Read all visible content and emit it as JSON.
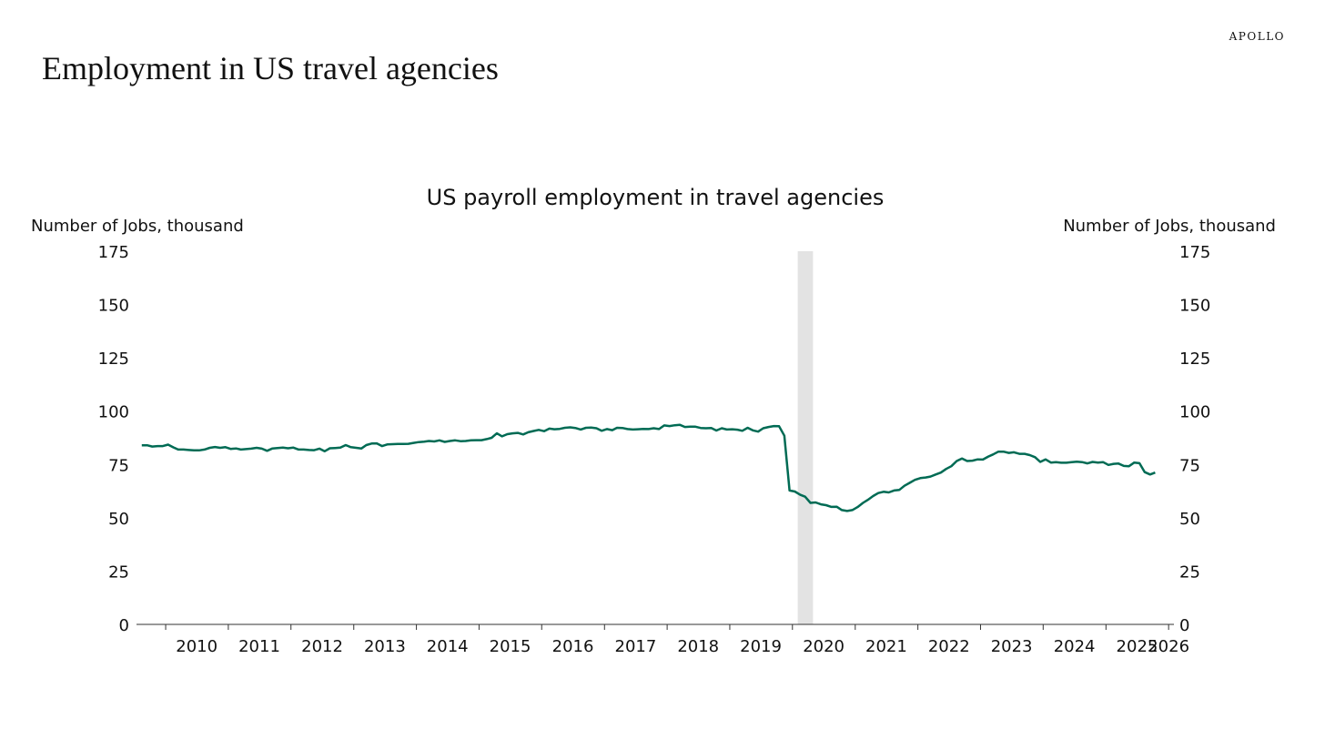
{
  "brand": "APOLLO",
  "page_title": "Employment in US travel agencies",
  "chart_data": {
    "type": "line",
    "title": "US payroll employment in travel agencies",
    "ylabel_left": "Number of Jobs, thousand",
    "ylabel_right": "Number of Jobs, thousand",
    "ylim": [
      0,
      175
    ],
    "yticks": [
      0,
      25,
      50,
      75,
      100,
      125,
      150,
      175
    ],
    "xlim": [
      "2009-07-15",
      "2026-02-01"
    ],
    "xticks": [
      "2010",
      "2011",
      "2012",
      "2013",
      "2014",
      "2015",
      "2016",
      "2017",
      "2018",
      "2019",
      "2020",
      "2021",
      "2022",
      "2023",
      "2024",
      "2025",
      "2026"
    ],
    "grid": false,
    "line_color": "#006B54",
    "shade_color": "#E3E3E3",
    "recession": {
      "start": "2020-02-01",
      "end": "2020-04-30"
    },
    "series": [
      {
        "values": [
          [
            "2009-08",
            84.0
          ],
          [
            "2009-09",
            84.0
          ],
          [
            "2009-10",
            83.4
          ],
          [
            "2009-11",
            83.6
          ],
          [
            "2009-12",
            83.6
          ],
          [
            "2010-01",
            84.3
          ],
          [
            "2010-02",
            83.0
          ],
          [
            "2010-03",
            82.0
          ],
          [
            "2010-04",
            82.0
          ],
          [
            "2010-05",
            81.8
          ],
          [
            "2010-06",
            81.6
          ],
          [
            "2010-07",
            81.6
          ],
          [
            "2010-08",
            82.0
          ],
          [
            "2010-09",
            82.8
          ],
          [
            "2010-10",
            83.2
          ],
          [
            "2010-11",
            82.8
          ],
          [
            "2010-12",
            83.1
          ],
          [
            "2011-01",
            82.3
          ],
          [
            "2011-02",
            82.5
          ],
          [
            "2011-03",
            82.0
          ],
          [
            "2011-04",
            82.2
          ],
          [
            "2011-05",
            82.4
          ],
          [
            "2011-06",
            82.8
          ],
          [
            "2011-07",
            82.4
          ],
          [
            "2011-08",
            81.4
          ],
          [
            "2011-09",
            82.5
          ],
          [
            "2011-10",
            82.7
          ],
          [
            "2011-11",
            82.9
          ],
          [
            "2011-12",
            82.6
          ],
          [
            "2012-01",
            82.9
          ],
          [
            "2012-02",
            82.0
          ],
          [
            "2012-03",
            82.0
          ],
          [
            "2012-04",
            81.8
          ],
          [
            "2012-05",
            81.7
          ],
          [
            "2012-06",
            82.4
          ],
          [
            "2012-07",
            81.2
          ],
          [
            "2012-08",
            82.6
          ],
          [
            "2012-09",
            82.7
          ],
          [
            "2012-10",
            82.9
          ],
          [
            "2012-11",
            84.1
          ],
          [
            "2012-12",
            83.1
          ],
          [
            "2013-01",
            82.8
          ],
          [
            "2013-02",
            82.5
          ],
          [
            "2013-03",
            84.1
          ],
          [
            "2013-04",
            84.8
          ],
          [
            "2013-05",
            84.9
          ],
          [
            "2013-06",
            83.6
          ],
          [
            "2013-07",
            84.4
          ],
          [
            "2013-08",
            84.5
          ],
          [
            "2013-09",
            84.6
          ],
          [
            "2013-10",
            84.6
          ],
          [
            "2013-11",
            84.7
          ],
          [
            "2013-12",
            85.1
          ],
          [
            "2014-01",
            85.5
          ],
          [
            "2014-02",
            85.7
          ],
          [
            "2014-03",
            86.0
          ],
          [
            "2014-04",
            85.8
          ],
          [
            "2014-05",
            86.3
          ],
          [
            "2014-06",
            85.6
          ],
          [
            "2014-07",
            86.0
          ],
          [
            "2014-08",
            86.3
          ],
          [
            "2014-09",
            85.9
          ],
          [
            "2014-10",
            86.0
          ],
          [
            "2014-11",
            86.3
          ],
          [
            "2014-12",
            86.4
          ],
          [
            "2015-01",
            86.4
          ],
          [
            "2015-02",
            86.9
          ],
          [
            "2015-03",
            87.5
          ],
          [
            "2015-04",
            89.6
          ],
          [
            "2015-05",
            88.2
          ],
          [
            "2015-06",
            89.2
          ],
          [
            "2015-07",
            89.6
          ],
          [
            "2015-08",
            89.8
          ],
          [
            "2015-09",
            89.1
          ],
          [
            "2015-10",
            90.1
          ],
          [
            "2015-11",
            90.7
          ],
          [
            "2015-12",
            91.2
          ],
          [
            "2016-01",
            90.6
          ],
          [
            "2016-02",
            91.8
          ],
          [
            "2016-03",
            91.5
          ],
          [
            "2016-04",
            91.7
          ],
          [
            "2016-05",
            92.2
          ],
          [
            "2016-06",
            92.4
          ],
          [
            "2016-07",
            92.1
          ],
          [
            "2016-08",
            91.4
          ],
          [
            "2016-09",
            92.2
          ],
          [
            "2016-10",
            92.3
          ],
          [
            "2016-11",
            92.0
          ],
          [
            "2016-12",
            90.8
          ],
          [
            "2017-01",
            91.6
          ],
          [
            "2017-02",
            91.1
          ],
          [
            "2017-03",
            92.2
          ],
          [
            "2017-04",
            92.1
          ],
          [
            "2017-05",
            91.6
          ],
          [
            "2017-06",
            91.4
          ],
          [
            "2017-07",
            91.5
          ],
          [
            "2017-08",
            91.7
          ],
          [
            "2017-09",
            91.6
          ],
          [
            "2017-10",
            92.0
          ],
          [
            "2017-11",
            91.6
          ],
          [
            "2017-12",
            93.3
          ],
          [
            "2018-01",
            93.0
          ],
          [
            "2018-02",
            93.4
          ],
          [
            "2018-03",
            93.6
          ],
          [
            "2018-04",
            92.6
          ],
          [
            "2018-05",
            92.7
          ],
          [
            "2018-06",
            92.7
          ],
          [
            "2018-07",
            92.1
          ],
          [
            "2018-08",
            92.0
          ],
          [
            "2018-09",
            92.1
          ],
          [
            "2018-10",
            90.9
          ],
          [
            "2018-11",
            92.0
          ],
          [
            "2018-12",
            91.4
          ],
          [
            "2019-01",
            91.5
          ],
          [
            "2019-02",
            91.3
          ],
          [
            "2019-03",
            90.8
          ],
          [
            "2019-04",
            92.2
          ],
          [
            "2019-05",
            91.0
          ],
          [
            "2019-06",
            90.4
          ],
          [
            "2019-07",
            92.0
          ],
          [
            "2019-08",
            92.6
          ],
          [
            "2019-09",
            93.0
          ],
          [
            "2019-10",
            92.9
          ],
          [
            "2019-11",
            88.5
          ],
          [
            "2019-12",
            62.8
          ],
          [
            "2020-01",
            62.3
          ],
          [
            "2020-02",
            60.8
          ],
          [
            "2020-03",
            59.9
          ],
          [
            "2020-04",
            57.0
          ],
          [
            "2020-05",
            57.2
          ],
          [
            "2020-06",
            56.3
          ],
          [
            "2020-07",
            55.9
          ],
          [
            "2020-08",
            55.1
          ],
          [
            "2020-09",
            55.2
          ],
          [
            "2020-10",
            53.6
          ],
          [
            "2020-11",
            53.2
          ],
          [
            "2020-12",
            53.6
          ],
          [
            "2021-01",
            55.0
          ],
          [
            "2021-02",
            57.0
          ],
          [
            "2021-03",
            58.4
          ],
          [
            "2021-04",
            60.2
          ],
          [
            "2021-05",
            61.6
          ],
          [
            "2021-06",
            62.2
          ],
          [
            "2021-07",
            61.9
          ],
          [
            "2021-08",
            62.8
          ],
          [
            "2021-09",
            63.1
          ],
          [
            "2021-10",
            65.0
          ],
          [
            "2021-11",
            66.4
          ],
          [
            "2021-12",
            67.8
          ],
          [
            "2022-01",
            68.6
          ],
          [
            "2022-02",
            68.9
          ],
          [
            "2022-03",
            69.3
          ],
          [
            "2022-04",
            70.3
          ],
          [
            "2022-05",
            71.2
          ],
          [
            "2022-06",
            72.9
          ],
          [
            "2022-07",
            74.2
          ],
          [
            "2022-08",
            76.6
          ],
          [
            "2022-09",
            77.8
          ],
          [
            "2022-10",
            76.6
          ],
          [
            "2022-11",
            76.8
          ],
          [
            "2022-12",
            77.4
          ],
          [
            "2023-01",
            77.3
          ],
          [
            "2023-02",
            78.7
          ],
          [
            "2023-03",
            79.7
          ],
          [
            "2023-04",
            81.0
          ],
          [
            "2023-05",
            81.0
          ],
          [
            "2023-06",
            80.4
          ],
          [
            "2023-07",
            80.7
          ],
          [
            "2023-08",
            80.0
          ],
          [
            "2023-09",
            80.0
          ],
          [
            "2023-10",
            79.4
          ],
          [
            "2023-11",
            78.4
          ],
          [
            "2023-12",
            76.2
          ],
          [
            "2024-01",
            77.4
          ],
          [
            "2024-02",
            75.9
          ],
          [
            "2024-03",
            76.1
          ],
          [
            "2024-04",
            75.8
          ],
          [
            "2024-05",
            75.8
          ],
          [
            "2024-06",
            76.1
          ],
          [
            "2024-07",
            76.3
          ],
          [
            "2024-08",
            76.1
          ],
          [
            "2024-09",
            75.5
          ],
          [
            "2024-10",
            76.2
          ],
          [
            "2024-11",
            75.9
          ],
          [
            "2024-12",
            76.1
          ],
          [
            "2025-01",
            74.8
          ],
          [
            "2025-02",
            75.3
          ],
          [
            "2025-03",
            75.4
          ],
          [
            "2025-04",
            74.3
          ],
          [
            "2025-05",
            74.2
          ],
          [
            "2025-06",
            75.9
          ],
          [
            "2025-07",
            75.6
          ],
          [
            "2025-08",
            71.4
          ],
          [
            "2025-09",
            70.3
          ],
          [
            "2025-10",
            71.2
          ]
        ]
      }
    ]
  }
}
